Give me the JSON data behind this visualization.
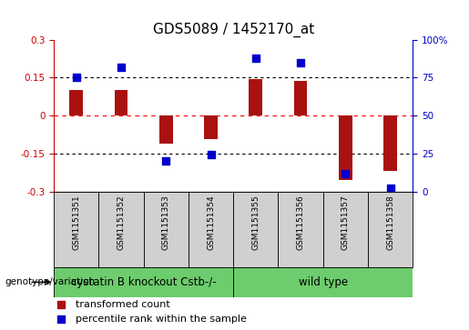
{
  "title": "GDS5089 / 1452170_at",
  "samples": [
    "GSM1151351",
    "GSM1151352",
    "GSM1151353",
    "GSM1151354",
    "GSM1151355",
    "GSM1151356",
    "GSM1151357",
    "GSM1151358"
  ],
  "transformed_count": [
    0.1,
    0.1,
    -0.11,
    -0.095,
    0.145,
    0.135,
    -0.255,
    -0.22
  ],
  "percentile_rank": [
    75,
    82,
    20,
    24,
    88,
    85,
    12,
    2
  ],
  "ylim_left": [
    -0.3,
    0.3
  ],
  "ylim_right": [
    0,
    100
  ],
  "yticks_left": [
    -0.3,
    -0.15,
    0,
    0.15,
    0.3
  ],
  "yticks_right": [
    0,
    25,
    50,
    75,
    100
  ],
  "groups": [
    {
      "label": "cystatin B knockout Cstb-/-",
      "start": 0,
      "end": 3
    },
    {
      "label": "wild type",
      "start": 4,
      "end": 7
    }
  ],
  "group_color": "#6dcc6d",
  "sample_box_color": "#d0d0d0",
  "bar_color": "#aa1111",
  "dot_color": "#0000cc",
  "bar_width": 0.3,
  "dot_size": 40,
  "left_axis_color": "#cc0000",
  "right_axis_color": "#0000cc",
  "title_fontsize": 11,
  "tick_fontsize": 7.5,
  "sample_fontsize": 6.5,
  "legend_fontsize": 8,
  "genotype_label": "genotype/variation",
  "legend_items": [
    {
      "label": "transformed count",
      "color": "#aa1111"
    },
    {
      "label": "percentile rank within the sample",
      "color": "#0000cc"
    }
  ]
}
